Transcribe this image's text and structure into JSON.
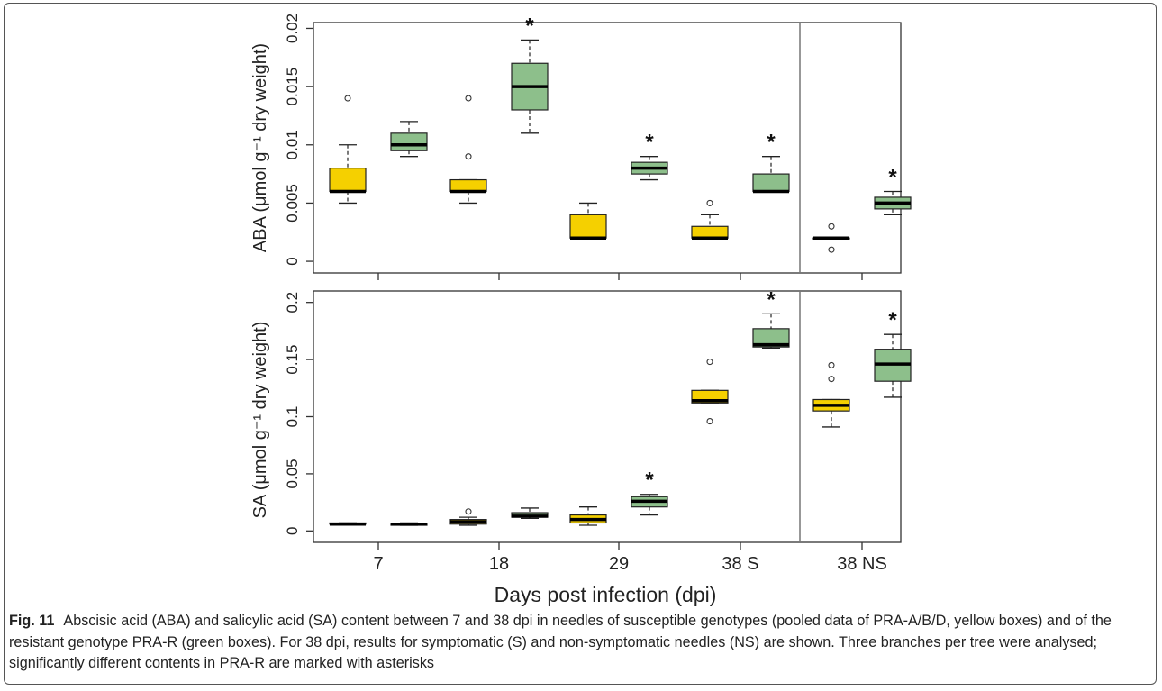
{
  "figure": {
    "label": "Fig. 11",
    "caption": "Abscisic acid (ABA) and salicylic acid (SA) content between 7 and 38 dpi in needles of susceptible genotypes (pooled data of PRA-A/B/D, yellow boxes) and of the resistant genotype PRA-R (green boxes). For 38 dpi, results for symptomatic (S) and non-symptomatic needles (NS) are shown. Three branches per tree were analysed; significantly different contents in PRA-R are marked with asterisks"
  },
  "colors": {
    "susceptible": "#f5d000",
    "resistant": "#8dbf8b",
    "median": "#000000",
    "axis": "#333333"
  },
  "chart_data": [
    {
      "type": "box",
      "panel": "ABA",
      "ylabel": "ABA (μmol g⁻¹ dry weight)",
      "ylim": [
        -0.001,
        0.0205
      ],
      "yticks": [
        0,
        0.005,
        0.01,
        0.015,
        0.02
      ],
      "ytick_labels": [
        "0",
        "0.005",
        "0.01",
        "0.015",
        "0.02"
      ],
      "categories": [
        "7",
        "18",
        "29",
        "38 S",
        "38 NS"
      ],
      "groups": [
        "susceptible",
        "resistant"
      ],
      "boxes": [
        {
          "category": "7",
          "group": "susceptible",
          "whisker_low": 0.005,
          "q1": 0.006,
          "median": 0.006,
          "q3": 0.008,
          "whisker_high": 0.01,
          "outliers": [
            0.014
          ]
        },
        {
          "category": "7",
          "group": "resistant",
          "whisker_low": 0.009,
          "q1": 0.0095,
          "median": 0.01,
          "q3": 0.011,
          "whisker_high": 0.012,
          "outliers": []
        },
        {
          "category": "18",
          "group": "susceptible",
          "whisker_low": 0.005,
          "q1": 0.006,
          "median": 0.006,
          "q3": 0.007,
          "whisker_high": 0.007,
          "outliers": [
            0.009,
            0.014
          ]
        },
        {
          "category": "18",
          "group": "resistant",
          "whisker_low": 0.011,
          "q1": 0.013,
          "median": 0.015,
          "q3": 0.017,
          "whisker_high": 0.019,
          "outliers": []
        },
        {
          "category": "29",
          "group": "susceptible",
          "whisker_low": 0.002,
          "q1": 0.002,
          "median": 0.002,
          "q3": 0.004,
          "whisker_high": 0.005,
          "outliers": []
        },
        {
          "category": "29",
          "group": "resistant",
          "whisker_low": 0.007,
          "q1": 0.0075,
          "median": 0.008,
          "q3": 0.0085,
          "whisker_high": 0.009,
          "outliers": []
        },
        {
          "category": "38 S",
          "group": "susceptible",
          "whisker_low": 0.002,
          "q1": 0.002,
          "median": 0.002,
          "q3": 0.003,
          "whisker_high": 0.004,
          "outliers": [
            0.005
          ]
        },
        {
          "category": "38 S",
          "group": "resistant",
          "whisker_low": 0.006,
          "q1": 0.006,
          "median": 0.006,
          "q3": 0.0075,
          "whisker_high": 0.009,
          "outliers": []
        },
        {
          "category": "38 NS",
          "group": "susceptible",
          "whisker_low": 0.002,
          "q1": 0.002,
          "median": 0.002,
          "q3": 0.002,
          "whisker_high": 0.002,
          "outliers": [
            0.001,
            0.003
          ]
        },
        {
          "category": "38 NS",
          "group": "resistant",
          "whisker_low": 0.004,
          "q1": 0.0045,
          "median": 0.005,
          "q3": 0.0055,
          "whisker_high": 0.006,
          "outliers": []
        }
      ],
      "significant": [
        "7:no",
        "18",
        "29",
        "38 S",
        "38 NS"
      ],
      "asterisk": "*"
    },
    {
      "type": "box",
      "panel": "SA",
      "ylabel": "SA (μmol g⁻¹ dry weight)",
      "xlabel": "Days post infection (dpi)",
      "ylim": [
        -0.01,
        0.21
      ],
      "yticks": [
        0,
        0.05,
        0.1,
        0.15,
        0.2
      ],
      "ytick_labels": [
        "0",
        "0.05",
        "0.1",
        "0.15",
        "0.2"
      ],
      "categories": [
        "7",
        "18",
        "29",
        "38 S",
        "38 NS"
      ],
      "groups": [
        "susceptible",
        "resistant"
      ],
      "boxes": [
        {
          "category": "7",
          "group": "susceptible",
          "whisker_low": 0.006,
          "q1": 0.006,
          "median": 0.006,
          "q3": 0.007,
          "whisker_high": 0.007,
          "outliers": []
        },
        {
          "category": "7",
          "group": "resistant",
          "whisker_low": 0.005,
          "q1": 0.005,
          "median": 0.006,
          "q3": 0.006,
          "whisker_high": 0.007,
          "outliers": []
        },
        {
          "category": "18",
          "group": "susceptible",
          "whisker_low": 0.005,
          "q1": 0.006,
          "median": 0.008,
          "q3": 0.01,
          "whisker_high": 0.012,
          "outliers": [
            0.017
          ]
        },
        {
          "category": "18",
          "group": "resistant",
          "whisker_low": 0.011,
          "q1": 0.012,
          "median": 0.013,
          "q3": 0.016,
          "whisker_high": 0.02,
          "outliers": []
        },
        {
          "category": "29",
          "group": "susceptible",
          "whisker_low": 0.005,
          "q1": 0.007,
          "median": 0.01,
          "q3": 0.014,
          "whisker_high": 0.021,
          "outliers": []
        },
        {
          "category": "29",
          "group": "resistant",
          "whisker_low": 0.014,
          "q1": 0.021,
          "median": 0.026,
          "q3": 0.03,
          "whisker_high": 0.032,
          "outliers": []
        },
        {
          "category": "38 S",
          "group": "susceptible",
          "whisker_low": 0.112,
          "q1": 0.112,
          "median": 0.114,
          "q3": 0.123,
          "whisker_high": 0.123,
          "outliers": [
            0.148,
            0.096
          ]
        },
        {
          "category": "38 S",
          "group": "resistant",
          "whisker_low": 0.16,
          "q1": 0.161,
          "median": 0.163,
          "q3": 0.177,
          "whisker_high": 0.19,
          "outliers": []
        },
        {
          "category": "38 NS",
          "group": "susceptible",
          "whisker_low": 0.091,
          "q1": 0.105,
          "median": 0.11,
          "q3": 0.115,
          "whisker_high": 0.115,
          "outliers": [
            0.145,
            0.133
          ]
        },
        {
          "category": "38 NS",
          "group": "resistant",
          "whisker_low": 0.117,
          "q1": 0.131,
          "median": 0.146,
          "q3": 0.159,
          "whisker_high": 0.172,
          "outliers": []
        }
      ],
      "significant": [
        "29",
        "38 S",
        "38 NS"
      ],
      "asterisk": "*"
    }
  ]
}
